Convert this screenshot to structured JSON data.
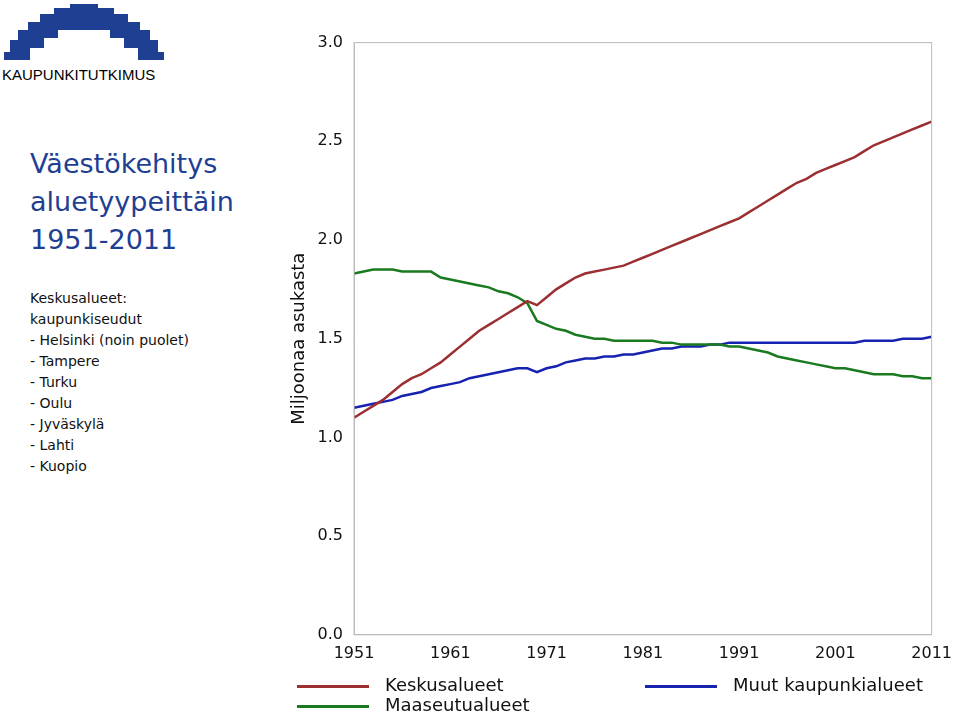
{
  "logo_text": "KAUPUNKITUTKIMUS",
  "chart_data": {
    "type": "line",
    "title": "Väestökehitys aluetyypeittäin 1951-2011",
    "annotations": [
      "Keskusalueet:",
      "kaupunkiseudut",
      "- Helsinki (noin puolet)",
      "- Tampere",
      "- Turku",
      "- Oulu",
      "- Jyväskylä",
      "- Lahti",
      "- Kuopio"
    ],
    "ylabel": "Miljoonaa asukasta",
    "x": [
      1951,
      1952,
      1953,
      1954,
      1955,
      1956,
      1957,
      1958,
      1959,
      1960,
      1961,
      1962,
      1963,
      1964,
      1965,
      1966,
      1967,
      1968,
      1969,
      1970,
      1971,
      1972,
      1973,
      1974,
      1975,
      1976,
      1977,
      1978,
      1979,
      1980,
      1981,
      1982,
      1983,
      1984,
      1985,
      1986,
      1987,
      1988,
      1989,
      1990,
      1991,
      1992,
      1993,
      1994,
      1995,
      1996,
      1997,
      1998,
      1999,
      2000,
      2001,
      2002,
      2003,
      2004,
      2005,
      2006,
      2007,
      2008,
      2009,
      2010,
      2011
    ],
    "series": [
      {
        "name": "Keskusalueet",
        "color": "#9b2f32",
        "values": [
          1.1,
          1.13,
          1.16,
          1.19,
          1.23,
          1.27,
          1.3,
          1.32,
          1.35,
          1.38,
          1.42,
          1.46,
          1.5,
          1.54,
          1.57,
          1.6,
          1.63,
          1.66,
          1.69,
          1.67,
          1.71,
          1.75,
          1.78,
          1.81,
          1.83,
          1.84,
          1.85,
          1.86,
          1.87,
          1.89,
          1.91,
          1.93,
          1.95,
          1.97,
          1.99,
          2.01,
          2.03,
          2.05,
          2.07,
          2.09,
          2.11,
          2.14,
          2.17,
          2.2,
          2.23,
          2.26,
          2.29,
          2.31,
          2.34,
          2.36,
          2.38,
          2.4,
          2.42,
          2.45,
          2.48,
          2.5,
          2.52,
          2.54,
          2.56,
          2.58,
          2.6
        ]
      },
      {
        "name": "Maaseutualueet",
        "color": "#1a7a1f",
        "values": [
          1.83,
          1.84,
          1.85,
          1.85,
          1.85,
          1.84,
          1.84,
          1.84,
          1.84,
          1.81,
          1.8,
          1.79,
          1.78,
          1.77,
          1.76,
          1.74,
          1.73,
          1.71,
          1.68,
          1.59,
          1.57,
          1.55,
          1.54,
          1.52,
          1.51,
          1.5,
          1.5,
          1.49,
          1.49,
          1.49,
          1.49,
          1.49,
          1.48,
          1.48,
          1.47,
          1.47,
          1.47,
          1.47,
          1.47,
          1.46,
          1.46,
          1.45,
          1.44,
          1.43,
          1.41,
          1.4,
          1.39,
          1.38,
          1.37,
          1.36,
          1.35,
          1.35,
          1.34,
          1.33,
          1.32,
          1.32,
          1.32,
          1.31,
          1.31,
          1.3,
          1.3
        ]
      },
      {
        "name": "Muut kaupunkialueet",
        "color": "#1622b0",
        "values": [
          1.15,
          1.16,
          1.17,
          1.18,
          1.19,
          1.21,
          1.22,
          1.23,
          1.25,
          1.26,
          1.27,
          1.28,
          1.3,
          1.31,
          1.32,
          1.33,
          1.34,
          1.35,
          1.35,
          1.33,
          1.35,
          1.36,
          1.38,
          1.39,
          1.4,
          1.4,
          1.41,
          1.41,
          1.42,
          1.42,
          1.43,
          1.44,
          1.45,
          1.45,
          1.46,
          1.46,
          1.46,
          1.47,
          1.47,
          1.48,
          1.48,
          1.48,
          1.48,
          1.48,
          1.48,
          1.48,
          1.48,
          1.48,
          1.48,
          1.48,
          1.48,
          1.48,
          1.48,
          1.49,
          1.49,
          1.49,
          1.49,
          1.5,
          1.5,
          1.5,
          1.51
        ]
      }
    ],
    "xlim": [
      1951,
      2011
    ],
    "xticks": [
      1951,
      1961,
      1971,
      1981,
      1991,
      2001,
      2011
    ],
    "ylim": [
      0,
      3
    ],
    "yticks": [
      {
        "value": 0,
        "label": "0.0"
      },
      {
        "value": 0.5,
        "label": "0.5"
      },
      {
        "value": 1,
        "label": "1.0"
      },
      {
        "value": 1.5,
        "label": "1.5"
      },
      {
        "value": 2,
        "label": "2.0"
      },
      {
        "value": 2.5,
        "label": "2.5"
      },
      {
        "value": 3,
        "label": "3.0"
      }
    ],
    "grid": false,
    "legend": "bottom"
  }
}
